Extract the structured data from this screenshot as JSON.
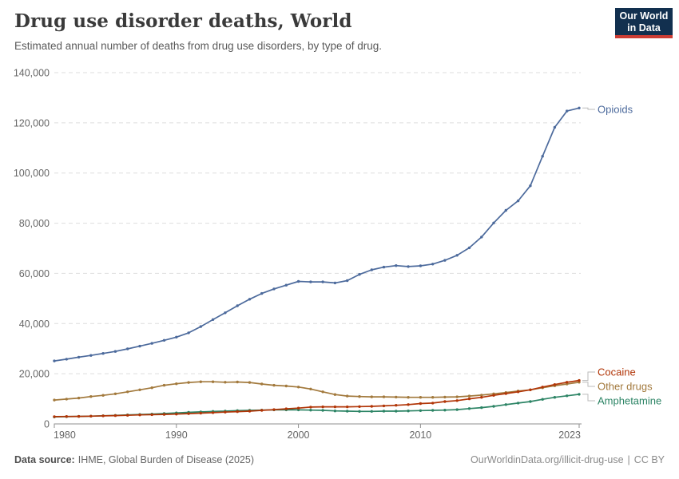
{
  "header": {
    "title": "Drug use disorder deaths, World",
    "subtitle": "Estimated annual number of deaths from drug use disorders, by type of drug.",
    "logo": {
      "line1": "Our World",
      "line2": "in Data",
      "bg_color": "#12304f",
      "stripe_color": "#cd3d34"
    }
  },
  "footer": {
    "source_label": "Data source:",
    "source_text": "IHME, Global Burden of Disease (2025)",
    "link_text": "OurWorldinData.org/illicit-drug-use",
    "separator": "|",
    "license": "CC BY"
  },
  "chart_data": {
    "type": "line",
    "title": "Drug use disorder deaths, World",
    "subtitle": "Estimated annual number of deaths from drug use disorders, by type of drug.",
    "xlabel": "",
    "ylabel": "",
    "ylim": [
      0,
      140000
    ],
    "ytick_interval": 20000,
    "ytick_labels": [
      "0",
      "20,000",
      "40,000",
      "60,000",
      "80,000",
      "100,000",
      "120,000",
      "140,000"
    ],
    "xticks": [
      1980,
      1990,
      2000,
      2010,
      2023
    ],
    "grid": "horizontal-dashed",
    "legend_position": "right-end-labels",
    "grid_color": "#dddddd",
    "axis_color": "#8f8f8f",
    "tick_label_color": "#666666",
    "connector_color": "#bbbbbb",
    "x": [
      1980,
      1981,
      1982,
      1983,
      1984,
      1985,
      1986,
      1987,
      1988,
      1989,
      1990,
      1991,
      1992,
      1993,
      1994,
      1995,
      1996,
      1997,
      1998,
      1999,
      2000,
      2001,
      2002,
      2003,
      2004,
      2005,
      2006,
      2007,
      2008,
      2009,
      2010,
      2011,
      2012,
      2013,
      2014,
      2015,
      2016,
      2017,
      2018,
      2019,
      2020,
      2021,
      2022,
      2023
    ],
    "series": [
      {
        "name": "Opioids",
        "color": "#4C6A9C",
        "values": [
          25100,
          25800,
          26600,
          27300,
          28100,
          28900,
          29900,
          31000,
          32100,
          33300,
          34600,
          36300,
          38800,
          41600,
          44300,
          47100,
          49700,
          52000,
          53800,
          55300,
          56800,
          56600,
          56600,
          56200,
          57100,
          59600,
          61400,
          62500,
          63100,
          62700,
          63000,
          63700,
          65200,
          67200,
          70200,
          74500,
          80100,
          85100,
          88900,
          94900,
          106700,
          118200,
          124700,
          125900
        ]
      },
      {
        "name": "Cocaine",
        "color": "#B13507",
        "values": [
          2900,
          2950,
          3000,
          3100,
          3200,
          3300,
          3450,
          3600,
          3700,
          3800,
          3900,
          4100,
          4300,
          4500,
          4700,
          4900,
          5100,
          5400,
          5700,
          6000,
          6300,
          6700,
          6800,
          6800,
          6800,
          6900,
          7000,
          7200,
          7400,
          7700,
          8100,
          8300,
          8900,
          9300,
          10000,
          10600,
          11400,
          12100,
          12800,
          13600,
          14700,
          15700,
          16600,
          17300
        ]
      },
      {
        "name": "Other drugs",
        "color": "#A2793C",
        "values": [
          9500,
          9900,
          10300,
          10900,
          11400,
          12000,
          12800,
          13600,
          14400,
          15400,
          16000,
          16500,
          16800,
          16800,
          16600,
          16700,
          16500,
          15900,
          15400,
          15100,
          14700,
          13900,
          12800,
          11700,
          11100,
          10900,
          10800,
          10800,
          10700,
          10600,
          10600,
          10600,
          10700,
          10800,
          11100,
          11500,
          12000,
          12500,
          13100,
          13600,
          14400,
          15200,
          15900,
          16600
        ]
      },
      {
        "name": "Amphetamine",
        "color": "#2C8465",
        "values": [
          2800,
          2900,
          3000,
          3100,
          3250,
          3400,
          3600,
          3750,
          3900,
          4150,
          4400,
          4600,
          4800,
          5000,
          5100,
          5300,
          5400,
          5500,
          5600,
          5600,
          5600,
          5500,
          5400,
          5200,
          5100,
          5000,
          5000,
          5100,
          5100,
          5200,
          5300,
          5400,
          5500,
          5700,
          6100,
          6500,
          7000,
          7700,
          8300,
          8900,
          9800,
          10600,
          11200,
          11800
        ]
      }
    ]
  }
}
